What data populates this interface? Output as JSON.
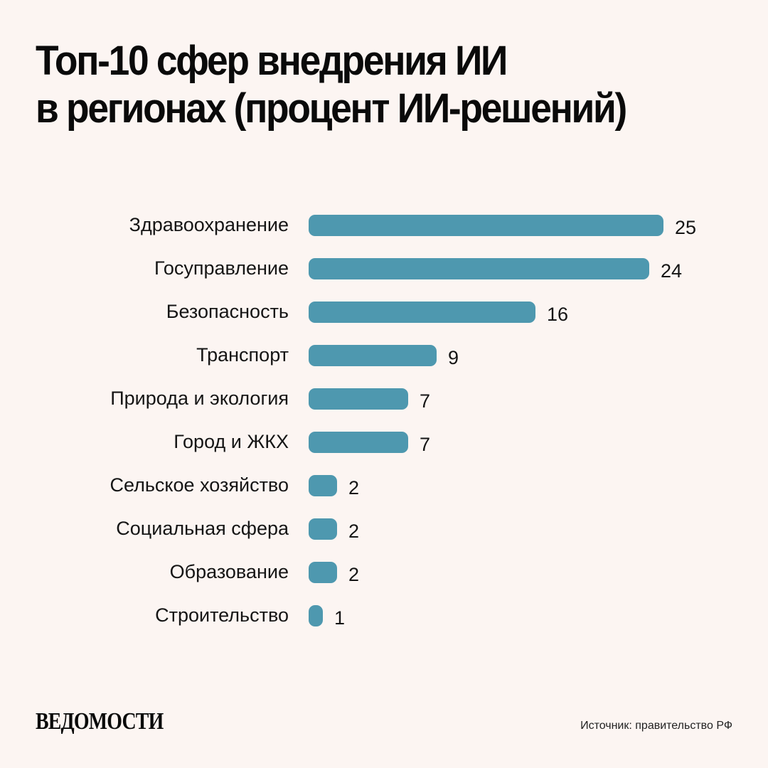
{
  "header": {
    "title_line1": "Топ-10 сфер внедрения ИИ",
    "title_line2": "в регионах (процент ИИ-решений)"
  },
  "footer": {
    "logo": "ВЕДОМОСТИ",
    "source": "Источник: правительство РФ"
  },
  "colors": {
    "background": "#fcf5f2",
    "bar": "#4e98af",
    "text": "#111111"
  },
  "chart_data": {
    "type": "bar",
    "orientation": "horizontal",
    "title": "Топ-10 сфер внедрения ИИ в регионах (процент ИИ-решений)",
    "xlabel": "",
    "ylabel": "",
    "grid": false,
    "legend": null,
    "categories": [
      "Здравоохранение",
      "Госуправление",
      "Безопасность",
      "Транспорт",
      "Природа и экология",
      "Город и ЖКХ",
      "Сельское хозяйство",
      "Социальная сфера",
      "Образование",
      "Строительство"
    ],
    "values": [
      25,
      24,
      16,
      9,
      7,
      7,
      2,
      2,
      2,
      1
    ],
    "unit": "%",
    "xlim": [
      0,
      25
    ]
  }
}
